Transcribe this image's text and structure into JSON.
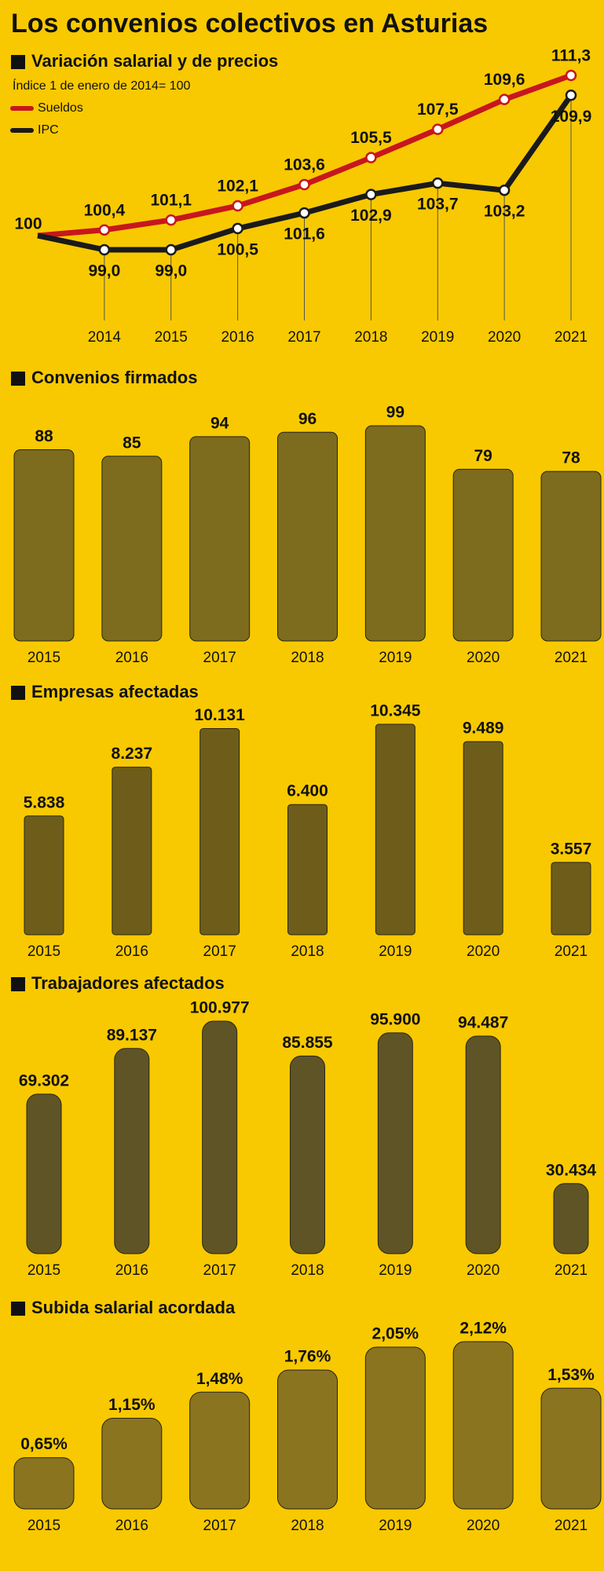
{
  "title": "Los convenios colectivos en Asturias",
  "chart_data": [
    {
      "type": "line",
      "title": "Variación salarial y de precios",
      "subtitle": "Índice 1 de enero de 2014= 100",
      "categories": [
        null,
        "2014",
        "2015",
        "2016",
        "2017",
        "2018",
        "2019",
        "2020",
        "2021"
      ],
      "series": [
        {
          "name": "Sueldos",
          "color": "#c8161d",
          "values": [
            100,
            100.4,
            101.1,
            102.1,
            103.6,
            105.5,
            107.5,
            109.6,
            111.3
          ],
          "value_labels": [
            "100",
            "100,4",
            "101,1",
            "102,1",
            "103,6",
            "105,5",
            "107,5",
            "109,6",
            "111,3"
          ]
        },
        {
          "name": "IPC",
          "color": "#1a1a1a",
          "values": [
            100,
            99.0,
            99.0,
            100.5,
            101.6,
            102.9,
            103.7,
            103.2,
            109.9
          ],
          "value_labels": [
            null,
            "99,0",
            "99,0",
            "100,5",
            "101,6",
            "102,9",
            "103,7",
            "103,2",
            "109,9"
          ]
        }
      ]
    },
    {
      "type": "bar",
      "title": "Convenios firmados",
      "categories": [
        "2015",
        "2016",
        "2017",
        "2018",
        "2019",
        "2020",
        "2021"
      ],
      "values": [
        88,
        85,
        94,
        96,
        99,
        79,
        78
      ],
      "color": "#7d6b1e"
    },
    {
      "type": "bar",
      "title": "Empresas afectadas",
      "categories": [
        "2015",
        "2016",
        "2017",
        "2018",
        "2019",
        "2020",
        "2021"
      ],
      "values": [
        5838,
        8237,
        10131,
        6400,
        10345,
        9489,
        3557
      ],
      "value_labels": [
        "5.838",
        "8.237",
        "10.131",
        "6.400",
        "10.345",
        "9.489",
        "3.557"
      ],
      "color": "#6e5d1a"
    },
    {
      "type": "bar",
      "title": "Trabajadores afectados",
      "categories": [
        "2015",
        "2016",
        "2017",
        "2018",
        "2019",
        "2020",
        "2021"
      ],
      "values": [
        69302,
        89137,
        100977,
        85855,
        95900,
        94487,
        30434
      ],
      "value_labels": [
        "69.302",
        "89.137",
        "100.977",
        "85.855",
        "95.900",
        "94.487",
        "30.434"
      ],
      "color": "#5f5426"
    },
    {
      "type": "bar",
      "title": "Subida salarial acordada",
      "categories": [
        "2015",
        "2016",
        "2017",
        "2018",
        "2019",
        "2020",
        "2021"
      ],
      "values": [
        0.65,
        1.15,
        1.48,
        1.76,
        2.05,
        2.12,
        1.53
      ],
      "value_labels": [
        "0,65%",
        "1,15%",
        "1,48%",
        "1,76%",
        "2,05%",
        "2,12%",
        "1,53%"
      ],
      "color": "#8a7420"
    }
  ]
}
